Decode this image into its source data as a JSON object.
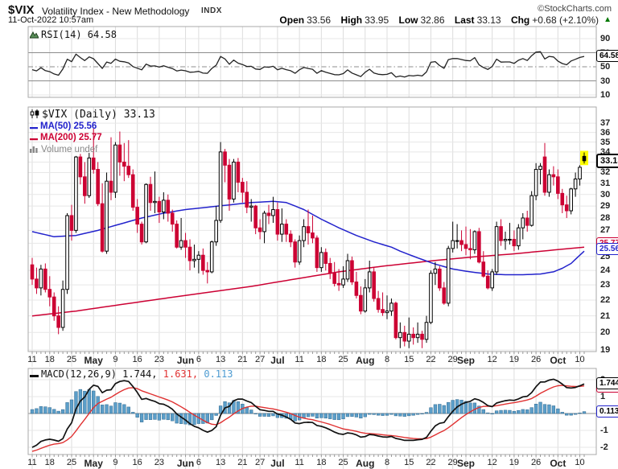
{
  "header": {
    "symbol": "$VIX",
    "title": "Volatility Index - New Methodology",
    "exchange": "INDX",
    "copyright": "©StockCharts.com",
    "datetime": "11-Oct-2022 10:57am",
    "quote": {
      "open_label": "Open",
      "open": "33.56",
      "high_label": "High",
      "high": "33.95",
      "low_label": "Low",
      "low": "32.86",
      "last_label": "Last",
      "last": "33.13",
      "chg_label": "Chg",
      "chg": "+0.68 (+2.10%)",
      "arrow": "▲"
    }
  },
  "rsi_panel": {
    "legend": "RSI(14) 64.58",
    "value_box": "64.58"
  },
  "main_panel": {
    "legend_symbol": "$VIX (Daily) 33.13",
    "legend_ma50": "MA(50) 25.56",
    "legend_ma200": "MA(200) 25.77",
    "legend_volume": "Volume undef",
    "price_box": "33.13",
    "ma50_box": "25.56",
    "ma200_box": "25.77"
  },
  "macd_panel": {
    "legend_name": "MACD(12,26,9) ",
    "value_macd": "1.744,",
    "value_signal": "1.631,",
    "value_hist": "0.113",
    "box_macd": "1.744",
    "box_hist": "0.113"
  },
  "chart_data": {
    "type": "candlestick",
    "title": "$VIX Volatility Index - New Methodology (Daily)",
    "main_scale": "log",
    "main_y_ticks": [
      37,
      36,
      35,
      34,
      33,
      32,
      31,
      30,
      29,
      28,
      27,
      26,
      25,
      24,
      23,
      22,
      21,
      20,
      19
    ],
    "x_labels": [
      {
        "i": 0,
        "t": "11"
      },
      {
        "i": 4,
        "t": "18"
      },
      {
        "i": 9,
        "t": "25"
      },
      {
        "i": 14,
        "t": "May",
        "m": 1
      },
      {
        "i": 19,
        "t": "9"
      },
      {
        "i": 24,
        "t": "16"
      },
      {
        "i": 29,
        "t": "23"
      },
      {
        "i": 35,
        "t": "Jun",
        "m": 1
      },
      {
        "i": 38,
        "t": "6"
      },
      {
        "i": 43,
        "t": "13"
      },
      {
        "i": 48,
        "t": "21"
      },
      {
        "i": 52,
        "t": "27"
      },
      {
        "i": 56,
        "t": "Jul",
        "m": 1
      },
      {
        "i": 61,
        "t": "11"
      },
      {
        "i": 66,
        "t": "18"
      },
      {
        "i": 71,
        "t": "25"
      },
      {
        "i": 76,
        "t": "Aug",
        "m": 1
      },
      {
        "i": 81,
        "t": "8"
      },
      {
        "i": 86,
        "t": "15"
      },
      {
        "i": 91,
        "t": "22"
      },
      {
        "i": 96,
        "t": "29"
      },
      {
        "i": 99,
        "t": "Sep",
        "m": 1
      },
      {
        "i": 105,
        "t": "12"
      },
      {
        "i": 110,
        "t": "19"
      },
      {
        "i": 115,
        "t": "26"
      },
      {
        "i": 120,
        "t": "Oct",
        "m": 1
      },
      {
        "i": 125,
        "t": "10"
      }
    ],
    "candles": [
      [
        24.4,
        24.9,
        23.0,
        23.4
      ],
      [
        23.4,
        24.2,
        22.4,
        22.8
      ],
      [
        22.8,
        24.4,
        22.3,
        24.1
      ],
      [
        24.1,
        24.5,
        22.5,
        22.7
      ],
      [
        22.7,
        23.6,
        21.6,
        22.2
      ],
      [
        22.2,
        22.5,
        20.7,
        21.0
      ],
      [
        21.0,
        21.6,
        19.9,
        20.3
      ],
      [
        20.3,
        23.3,
        20.1,
        22.7
      ],
      [
        22.7,
        28.4,
        22.4,
        28.2
      ],
      [
        28.2,
        29.1,
        26.2,
        27.0
      ],
      [
        27.0,
        33.6,
        26.8,
        33.5
      ],
      [
        33.5,
        33.8,
        30.9,
        31.6
      ],
      [
        31.6,
        33.0,
        29.2,
        29.9
      ],
      [
        29.9,
        33.9,
        29.7,
        33.4
      ],
      [
        33.4,
        36.4,
        31.9,
        32.3
      ],
      [
        32.3,
        33.0,
        29.0,
        29.2
      ],
      [
        29.2,
        31.0,
        25.3,
        25.4
      ],
      [
        25.4,
        32.0,
        25.2,
        31.2
      ],
      [
        31.2,
        35.5,
        29.5,
        30.2
      ],
      [
        30.2,
        35.0,
        29.7,
        34.7
      ],
      [
        34.7,
        36.1,
        31.7,
        33.0
      ],
      [
        33.0,
        34.9,
        31.2,
        32.6
      ],
      [
        32.6,
        35.2,
        31.5,
        31.8
      ],
      [
        31.8,
        32.3,
        28.6,
        28.9
      ],
      [
        28.9,
        29.6,
        26.8,
        27.5
      ],
      [
        27.5,
        27.7,
        25.9,
        26.1
      ],
      [
        26.1,
        31.0,
        26.0,
        30.9
      ],
      [
        30.9,
        31.6,
        28.6,
        29.3
      ],
      [
        29.3,
        32.1,
        28.4,
        29.4
      ],
      [
        29.4,
        29.8,
        27.6,
        28.5
      ],
      [
        28.5,
        30.2,
        27.9,
        29.5
      ],
      [
        29.5,
        30.0,
        27.7,
        28.4
      ],
      [
        28.4,
        28.7,
        26.9,
        27.5
      ],
      [
        27.5,
        27.8,
        25.6,
        25.7
      ],
      [
        25.7,
        28.0,
        25.5,
        26.2
      ],
      [
        26.2,
        26.8,
        24.9,
        25.7
      ],
      [
        25.7,
        26.3,
        24.0,
        24.7
      ],
      [
        24.7,
        25.9,
        24.2,
        24.8
      ],
      [
        24.8,
        25.4,
        23.8,
        25.1
      ],
      [
        25.1,
        25.6,
        23.7,
        24.0
      ],
      [
        24.0,
        24.6,
        23.1,
        23.9
      ],
      [
        23.9,
        26.2,
        23.8,
        26.1
      ],
      [
        26.1,
        29.0,
        25.8,
        27.8
      ],
      [
        27.8,
        35.0,
        27.6,
        34.0
      ],
      [
        34.0,
        34.3,
        31.1,
        32.7
      ],
      [
        32.7,
        33.3,
        28.6,
        29.6
      ],
      [
        29.6,
        33.3,
        29.3,
        33.0
      ],
      [
        33.0,
        33.4,
        30.2,
        31.1
      ],
      [
        31.1,
        31.5,
        29.3,
        30.2
      ],
      [
        30.2,
        31.2,
        28.4,
        28.9
      ],
      [
        28.9,
        29.6,
        27.7,
        29.0
      ],
      [
        29.0,
        29.1,
        26.7,
        27.2
      ],
      [
        27.2,
        27.9,
        26.3,
        26.9
      ],
      [
        26.9,
        28.6,
        26.0,
        28.4
      ],
      [
        28.4,
        29.1,
        27.5,
        28.2
      ],
      [
        28.2,
        29.8,
        27.6,
        28.7
      ],
      [
        28.7,
        29.3,
        26.2,
        26.7
      ],
      [
        26.7,
        28.8,
        26.1,
        27.5
      ],
      [
        27.5,
        27.9,
        26.1,
        26.7
      ],
      [
        26.7,
        27.0,
        25.7,
        26.1
      ],
      [
        26.1,
        26.3,
        24.2,
        24.6
      ],
      [
        24.6,
        26.6,
        24.4,
        26.2
      ],
      [
        26.2,
        27.9,
        25.7,
        27.3
      ],
      [
        27.3,
        28.7,
        25.9,
        26.8
      ],
      [
        26.8,
        28.2,
        26.0,
        26.4
      ],
      [
        26.4,
        26.6,
        23.9,
        24.2
      ],
      [
        24.2,
        25.7,
        23.9,
        25.3
      ],
      [
        25.3,
        25.6,
        24.0,
        24.5
      ],
      [
        24.5,
        24.9,
        23.4,
        23.8
      ],
      [
        23.8,
        24.6,
        22.9,
        23.1
      ],
      [
        23.1,
        24.1,
        22.6,
        23.0
      ],
      [
        23.0,
        24.3,
        22.8,
        23.4
      ],
      [
        23.4,
        25.2,
        23.2,
        24.7
      ],
      [
        24.7,
        25.0,
        23.0,
        23.2
      ],
      [
        23.2,
        23.9,
        22.1,
        22.3
      ],
      [
        22.3,
        22.9,
        21.1,
        21.3
      ],
      [
        21.3,
        23.4,
        21.2,
        22.8
      ],
      [
        22.8,
        24.7,
        22.5,
        23.9
      ],
      [
        23.9,
        24.2,
        21.9,
        22.1
      ],
      [
        22.1,
        22.6,
        21.2,
        21.4
      ],
      [
        21.4,
        22.5,
        21.0,
        21.2
      ],
      [
        21.2,
        22.3,
        20.8,
        21.3
      ],
      [
        21.3,
        22.1,
        21.0,
        21.8
      ],
      [
        21.8,
        21.9,
        19.6,
        19.7
      ],
      [
        19.7,
        20.6,
        19.1,
        20.0
      ],
      [
        20.0,
        20.4,
        19.2,
        19.5
      ],
      [
        19.5,
        20.9,
        19.1,
        19.9
      ],
      [
        19.9,
        20.3,
        19.3,
        19.7
      ],
      [
        19.7,
        20.6,
        19.4,
        19.9
      ],
      [
        19.9,
        20.1,
        19.1,
        19.6
      ],
      [
        19.6,
        21.0,
        19.4,
        20.6
      ],
      [
        20.6,
        24.0,
        20.5,
        23.8
      ],
      [
        23.8,
        24.6,
        23.0,
        24.1
      ],
      [
        24.1,
        24.3,
        22.6,
        22.8
      ],
      [
        22.8,
        23.2,
        21.7,
        21.8
      ],
      [
        21.8,
        25.8,
        21.6,
        25.6
      ],
      [
        25.6,
        27.7,
        25.3,
        26.2
      ],
      [
        26.2,
        27.5,
        25.6,
        26.2
      ],
      [
        26.2,
        27.0,
        25.4,
        25.9
      ],
      [
        25.9,
        27.3,
        25.1,
        25.6
      ],
      [
        25.6,
        27.1,
        24.8,
        25.5
      ],
      [
        25.5,
        27.0,
        25.2,
        26.9
      ],
      [
        26.9,
        27.2,
        24.5,
        24.6
      ],
      [
        24.6,
        25.4,
        23.5,
        23.6
      ],
      [
        23.6,
        24.0,
        22.7,
        22.8
      ],
      [
        22.8,
        24.1,
        22.6,
        23.9
      ],
      [
        23.9,
        27.7,
        23.7,
        27.3
      ],
      [
        27.3,
        27.9,
        25.8,
        26.2
      ],
      [
        26.2,
        26.9,
        25.5,
        26.3
      ],
      [
        26.3,
        27.6,
        25.9,
        26.3
      ],
      [
        26.3,
        27.0,
        25.4,
        25.8
      ],
      [
        25.8,
        27.5,
        25.5,
        27.2
      ],
      [
        27.2,
        28.4,
        26.3,
        28.0
      ],
      [
        28.0,
        28.6,
        26.9,
        27.4
      ],
      [
        27.4,
        30.3,
        27.3,
        29.9
      ],
      [
        29.9,
        32.9,
        29.5,
        32.3
      ],
      [
        32.3,
        32.9,
        30.9,
        32.6
      ],
      [
        33.5,
        34.9,
        29.9,
        30.2
      ],
      [
        30.2,
        32.3,
        29.8,
        31.8
      ],
      [
        31.8,
        32.6,
        30.8,
        31.6
      ],
      [
        31.6,
        32.3,
        29.6,
        30.1
      ],
      [
        30.1,
        30.5,
        28.4,
        29.1
      ],
      [
        29.1,
        29.9,
        28.0,
        28.6
      ],
      [
        28.6,
        30.6,
        28.3,
        30.5
      ],
      [
        30.5,
        32.0,
        29.8,
        31.4
      ],
      [
        31.4,
        32.7,
        30.8,
        32.5
      ],
      [
        33.56,
        33.95,
        32.86,
        33.13
      ]
    ],
    "ma50": {
      "period": 50,
      "last": 25.56,
      "points": [
        [
          0,
          26.9
        ],
        [
          5,
          26.5
        ],
        [
          10,
          26.6
        ],
        [
          15,
          27.0
        ],
        [
          20,
          27.5
        ],
        [
          25,
          28.0
        ],
        [
          30,
          28.4
        ],
        [
          35,
          28.7
        ],
        [
          40,
          28.9
        ],
        [
          45,
          29.1
        ],
        [
          50,
          29.3
        ],
        [
          55,
          29.4
        ],
        [
          58,
          29.3
        ],
        [
          62,
          28.7
        ],
        [
          66,
          27.9
        ],
        [
          70,
          27.2
        ],
        [
          74,
          26.6
        ],
        [
          78,
          26.1
        ],
        [
          82,
          25.7
        ],
        [
          84,
          25.4
        ],
        [
          88,
          24.9
        ],
        [
          92,
          24.45
        ],
        [
          96,
          24.1
        ],
        [
          100,
          23.9
        ],
        [
          104,
          23.75
        ],
        [
          108,
          23.7
        ],
        [
          112,
          23.7
        ],
        [
          116,
          23.75
        ],
        [
          119,
          23.9
        ],
        [
          121,
          24.15
        ],
        [
          123,
          24.5
        ],
        [
          125,
          25.1
        ],
        [
          126,
          25.4
        ]
      ]
    },
    "ma200": {
      "period": 200,
      "last": 25.77,
      "points": [
        [
          0,
          21.0
        ],
        [
          10,
          21.3
        ],
        [
          20,
          21.7
        ],
        [
          30,
          22.1
        ],
        [
          40,
          22.5
        ],
        [
          50,
          22.9
        ],
        [
          60,
          23.4
        ],
        [
          70,
          23.9
        ],
        [
          80,
          24.3
        ],
        [
          90,
          24.65
        ],
        [
          100,
          24.95
        ],
        [
          110,
          25.2
        ],
        [
          118,
          25.45
        ],
        [
          126,
          25.7
        ]
      ]
    },
    "rsi": {
      "period": 14,
      "last": 64.58,
      "seed_avg_gain": 0.55,
      "seed_avg_loss": 0.65,
      "ref_lines": [
        30,
        50,
        70
      ],
      "y_ticks": [
        90,
        70,
        50,
        30,
        10
      ]
    },
    "macd": {
      "params": [
        12,
        26,
        9
      ],
      "last_macd": 1.744,
      "last_signal": 1.631,
      "last_hist": 0.113,
      "seed_ema12": 23.0,
      "seed_ema26": 25.2,
      "seed_signal": -2.3,
      "y_ticks": [
        2,
        1,
        0,
        -1,
        -2
      ]
    },
    "colors": {
      "up": "#000000",
      "down": "#CC0033",
      "ma50": "#2222CC",
      "ma200": "#CC0033",
      "signal": "#E03131",
      "rsi_line": "#222222",
      "macd_line": "#111111",
      "hist_fill": "#5B9EC9",
      "hist_stroke": "#31698E",
      "grid_h": "#E7E7E7",
      "grid_v": "#DCDCDC",
      "frame": "#A9A9A9",
      "ref_line": "#8C8C8C",
      "highlight": "#FFFF00",
      "tick": "#999999"
    }
  }
}
